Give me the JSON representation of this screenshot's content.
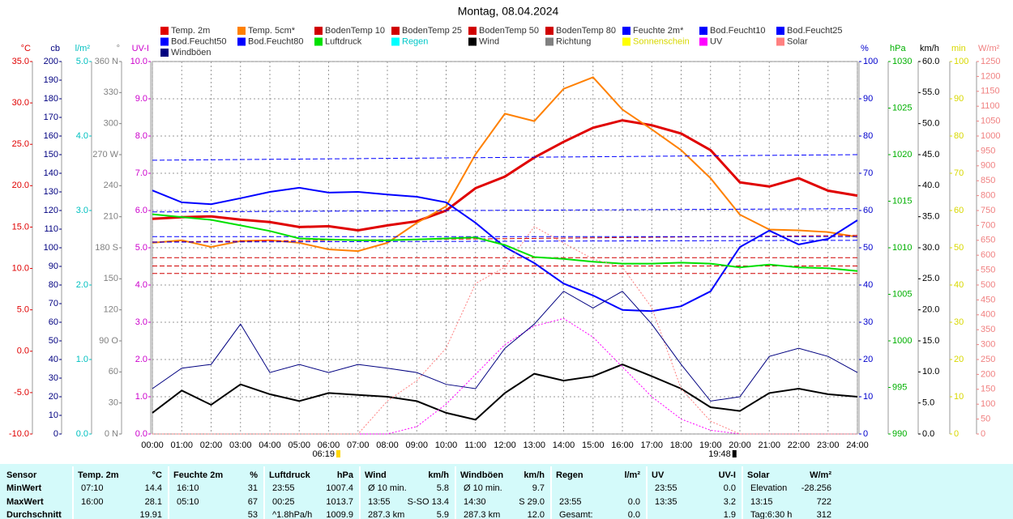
{
  "chart_data": {
    "type": "line",
    "title": "Montag, 08.04.2024",
    "sunrise": "06:19",
    "sunset": "19:48",
    "grid": true,
    "xlim": [
      0,
      24
    ],
    "xticks": [
      {
        "value": 0,
        "label": "00:00"
      },
      {
        "value": 1,
        "label": "01:00"
      },
      {
        "value": 2,
        "label": "02:00"
      },
      {
        "value": 3,
        "label": "03:00"
      },
      {
        "value": 4,
        "label": "04:00"
      },
      {
        "value": 5,
        "label": "05:00"
      },
      {
        "value": 6,
        "label": "06:00"
      },
      {
        "value": 7,
        "label": "07:00"
      },
      {
        "value": 8,
        "label": "08:00"
      },
      {
        "value": 9,
        "label": "09:00"
      },
      {
        "value": 10,
        "label": "10:00"
      },
      {
        "value": 11,
        "label": "11:00"
      },
      {
        "value": 12,
        "label": "12:00"
      },
      {
        "value": 13,
        "label": "13:00"
      },
      {
        "value": 14,
        "label": "14:00"
      },
      {
        "value": 15,
        "label": "15:00"
      },
      {
        "value": 16,
        "label": "16:00"
      },
      {
        "value": 17,
        "label": "17:00"
      },
      {
        "value": 18,
        "label": "18:00"
      },
      {
        "value": 19,
        "label": "19:00"
      },
      {
        "value": 20,
        "label": "20:00"
      },
      {
        "value": 21,
        "label": "21:00"
      },
      {
        "value": 22,
        "label": "22:00"
      },
      {
        "value": 23,
        "label": "23:00"
      },
      {
        "value": 24,
        "label": "24:00"
      }
    ],
    "x": [
      0,
      1,
      2,
      3,
      4,
      5,
      6,
      7,
      8,
      9,
      10,
      11,
      12,
      13,
      14,
      15,
      16,
      17,
      18,
      19,
      20,
      21,
      22,
      23,
      24
    ],
    "axes": [
      {
        "label": "°C",
        "side": "left",
        "color": "#e00000",
        "lim": [
          -10,
          35
        ],
        "ticks": [
          {
            "value": -10,
            "label": "-10.0"
          },
          {
            "value": -5,
            "label": "-5.0"
          },
          {
            "value": 0,
            "label": "0.0"
          },
          {
            "value": 5,
            "label": "5.0"
          },
          {
            "value": 10,
            "label": "10.0"
          },
          {
            "value": 15,
            "label": "15.0"
          },
          {
            "value": 20,
            "label": "20.0"
          },
          {
            "value": 25,
            "label": "25.0"
          },
          {
            "value": 30,
            "label": "30.0"
          },
          {
            "value": 35,
            "label": "35.0"
          }
        ]
      },
      {
        "label": "cb",
        "side": "left",
        "color": "#000080",
        "lim": [
          0,
          200
        ],
        "ticks": [
          0,
          10,
          20,
          30,
          40,
          50,
          60,
          70,
          80,
          90,
          100,
          110,
          120,
          130,
          140,
          150,
          160,
          170,
          180,
          190,
          200
        ]
      },
      {
        "label": "l/m²",
        "side": "left",
        "color": "#00c0c0",
        "lim": [
          0,
          5
        ],
        "ticks": [
          {
            "value": 0,
            "label": "0.0"
          },
          {
            "value": 1,
            "label": "1.0"
          },
          {
            "value": 2,
            "label": "2.0"
          },
          {
            "value": 3,
            "label": "3.0"
          },
          {
            "value": 4,
            "label": "4.0"
          },
          {
            "value": 5,
            "label": "5.0"
          }
        ]
      },
      {
        "label": "°",
        "side": "left",
        "color": "#808080",
        "lim": [
          0,
          360
        ],
        "ticks": [
          {
            "value": 0,
            "label": "0 N"
          },
          30,
          60,
          {
            "value": 90,
            "label": "90 O"
          },
          120,
          150,
          {
            "value": 180,
            "label": "180 S"
          },
          210,
          240,
          {
            "value": 270,
            "label": "270 W"
          },
          300,
          330,
          {
            "value": 360,
            "label": "360 N"
          }
        ]
      },
      {
        "label": "UV-I",
        "side": "left",
        "color": "#cc00cc",
        "lim": [
          0,
          10
        ],
        "ticks": [
          {
            "value": 0,
            "label": "0.0"
          },
          {
            "value": 1,
            "label": "1.0"
          },
          {
            "value": 2,
            "label": "2.0"
          },
          {
            "value": 3,
            "label": "3.0"
          },
          {
            "value": 4,
            "label": "4.0"
          },
          {
            "value": 5,
            "label": "5.0"
          },
          {
            "value": 6,
            "label": "6.0"
          },
          {
            "value": 7,
            "label": "7.0"
          },
          {
            "value": 8,
            "label": "8.0"
          },
          {
            "value": 9,
            "label": "9.0"
          },
          {
            "value": 10,
            "label": "10.0"
          }
        ]
      },
      {
        "label": "%",
        "side": "right",
        "color": "#0000cc",
        "lim": [
          0,
          100
        ],
        "ticks": [
          0,
          10,
          20,
          30,
          40,
          50,
          60,
          70,
          80,
          90,
          100
        ]
      },
      {
        "label": "hPa",
        "side": "right",
        "color": "#00b000",
        "lim": [
          990,
          1030
        ],
        "ticks": [
          990,
          995,
          1000,
          1005,
          1010,
          1015,
          1020,
          1025,
          1030
        ]
      },
      {
        "label": "km/h",
        "side": "right",
        "color": "#000000",
        "lim": [
          0,
          60
        ],
        "ticks": [
          {
            "value": 0,
            "label": "0.0"
          },
          {
            "value": 5,
            "label": "5.0"
          },
          {
            "value": 10,
            "label": "10.0"
          },
          {
            "value": 15,
            "label": "15.0"
          },
          {
            "value": 20,
            "label": "20.0"
          },
          {
            "value": 25,
            "label": "25.0"
          },
          {
            "value": 30,
            "label": "30.0"
          },
          {
            "value": 35,
            "label": "35.0"
          },
          {
            "value": 40,
            "label": "40.0"
          },
          {
            "value": 45,
            "label": "45.0"
          },
          {
            "value": 50,
            "label": "50.0"
          },
          {
            "value": 55,
            "label": "55.0"
          },
          {
            "value": 60,
            "label": "60.0"
          }
        ]
      },
      {
        "label": "min",
        "side": "right",
        "color": "#d8d800",
        "lim": [
          0,
          100
        ],
        "ticks": [
          0,
          10,
          20,
          30,
          40,
          50,
          60,
          70,
          80,
          90,
          100
        ]
      },
      {
        "label": "W/m²",
        "side": "right",
        "color": "#f08080",
        "lim": [
          0,
          1250
        ],
        "ticks": [
          0,
          50,
          100,
          150,
          200,
          250,
          300,
          350,
          400,
          450,
          500,
          550,
          600,
          650,
          700,
          750,
          800,
          850,
          900,
          950,
          1000,
          1050,
          1100,
          1150,
          1200,
          1250
        ]
      }
    ],
    "series": [
      {
        "name": "Temp. 2m",
        "color": "#e00000",
        "axis": "°C",
        "style": "solid",
        "width": 3,
        "values": [
          16.0,
          16.2,
          16.3,
          15.9,
          15.6,
          15.0,
          15.1,
          14.6,
          15.2,
          15.7,
          17.0,
          19.7,
          21.1,
          23.4,
          25.3,
          27.0,
          27.9,
          27.3,
          26.3,
          24.3,
          20.4,
          19.9,
          20.9,
          19.4,
          18.8
        ]
      },
      {
        "name": "Temp. 5cm*",
        "color": "#ff8000",
        "axis": "°C",
        "style": "solid",
        "width": 2,
        "values": [
          13.1,
          13.4,
          12.6,
          13.3,
          13.4,
          13.1,
          12.3,
          12.1,
          13.1,
          15.5,
          17.5,
          23.8,
          28.7,
          27.8,
          31.7,
          33.1,
          29.2,
          26.8,
          24.3,
          20.9,
          16.5,
          14.7,
          14.6,
          14.4,
          13.8
        ]
      },
      {
        "name": "BodenTemp 10",
        "color": "#d00000",
        "axis": "°C",
        "style": "dashed",
        "width": 1,
        "x": [
          0,
          24
        ],
        "values": [
          13.2,
          14.0
        ]
      },
      {
        "name": "BodenTemp 25",
        "color": "#d00000",
        "axis": "°C",
        "style": "dashed",
        "width": 1,
        "x": [
          0,
          24
        ],
        "values": [
          11.3,
          11.3
        ]
      },
      {
        "name": "BodenTemp 50",
        "color": "#d00000",
        "axis": "°C",
        "style": "dashed",
        "width": 1,
        "x": [
          0,
          24
        ],
        "values": [
          10.3,
          10.3
        ]
      },
      {
        "name": "BodenTemp 80",
        "color": "#d00000",
        "axis": "°C",
        "style": "dashed",
        "width": 1,
        "x": [
          0,
          24
        ],
        "values": [
          9.4,
          9.4
        ]
      },
      {
        "name": "Feuchte 2m*",
        "color": "#0000ff",
        "axis": "%",
        "style": "solid",
        "width": 2,
        "values": [
          65.4,
          62.2,
          61.7,
          63.3,
          65.0,
          66.1,
          64.8,
          65.0,
          64.3,
          63.7,
          62.2,
          56.7,
          50.2,
          45.9,
          40.4,
          37.2,
          33.3,
          33.0,
          34.3,
          38.3,
          50.2,
          54.6,
          50.9,
          52.4,
          57.4
        ]
      },
      {
        "name": "Bod.Feucht10",
        "color": "#0000ff",
        "axis": "%",
        "style": "dashed",
        "width": 1,
        "x": [
          0,
          24
        ],
        "values": [
          53,
          53
        ]
      },
      {
        "name": "Bod.Feucht25",
        "color": "#0000ff",
        "axis": "%",
        "style": "dashed",
        "width": 1,
        "x": [
          0,
          24
        ],
        "values": [
          59.6,
          60.5
        ]
      },
      {
        "name": "Bod.Feucht50",
        "color": "#0000ff",
        "axis": "%",
        "style": "dashed",
        "width": 1,
        "x": [
          0,
          24
        ],
        "values": [
          51.5,
          52
        ]
      },
      {
        "name": "Bod.Feucht80",
        "color": "#0000ff",
        "axis": "%",
        "style": "dashed",
        "width": 1,
        "x": [
          0,
          24
        ],
        "values": [
          73.5,
          75
        ]
      },
      {
        "name": "Luftdruck",
        "color": "#00e000",
        "axis": "hPa",
        "style": "solid",
        "width": 2,
        "values": [
          1013.6,
          1013.3,
          1013.0,
          1012.4,
          1011.8,
          1011.0,
          1010.9,
          1010.8,
          1010.8,
          1010.9,
          1011.0,
          1011.1,
          1010.3,
          1009.0,
          1008.8,
          1008.5,
          1008.3,
          1008.3,
          1008.4,
          1008.3,
          1007.9,
          1008.2,
          1007.9,
          1007.8,
          1007.5
        ]
      },
      {
        "name": "Regen",
        "color": "#00ffff",
        "axis": "l/m²"
      },
      {
        "name": "Wind",
        "color": "#000000",
        "axis": "km/h",
        "style": "solid",
        "width": 2,
        "values": [
          3.4,
          7.0,
          4.7,
          8.0,
          6.4,
          5.3,
          6.6,
          6.3,
          6.0,
          5.3,
          3.4,
          2.3,
          6.6,
          9.7,
          8.6,
          9.3,
          11.2,
          9.3,
          7.3,
          4.3,
          3.7,
          6.6,
          7.3,
          6.4,
          6.0
        ]
      },
      {
        "name": "Richtung",
        "color": "#808080",
        "axis": "°"
      },
      {
        "name": "Sonnenschein",
        "color": "#ffff00",
        "axis": "min"
      },
      {
        "name": "UV",
        "color": "#ff00ff",
        "axis": "UV-I",
        "style": "dotted",
        "width": 1,
        "values": [
          0,
          0,
          0,
          0,
          0,
          0,
          0,
          0,
          0,
          0.2,
          0.8,
          1.6,
          2.4,
          2.9,
          3.1,
          2.6,
          1.8,
          1.0,
          0.4,
          0.1,
          0,
          0,
          0,
          0,
          0
        ]
      },
      {
        "name": "Solar",
        "color": "#ff8080",
        "axis": "W/m²",
        "style": "dotted",
        "width": 1,
        "values": [
          0,
          0,
          0,
          0,
          0,
          0,
          0,
          0,
          111,
          179,
          288,
          505,
          560,
          696,
          641,
          587,
          560,
          424,
          152,
          43,
          0,
          0,
          0,
          0,
          0
        ]
      },
      {
        "name": "Windböen",
        "color": "#000080",
        "axis": "km/h",
        "style": "solid",
        "width": 1,
        "values": [
          7.3,
          10.6,
          11.2,
          17.7,
          9.9,
          11.2,
          9.9,
          11.2,
          10.6,
          9.9,
          8.0,
          7.3,
          13.8,
          17.7,
          23.0,
          20.3,
          23.0,
          17.7,
          11.2,
          5.3,
          6.0,
          12.5,
          13.8,
          12.5,
          9.9
        ]
      }
    ]
  },
  "table": {
    "sensor_label": "Sensor",
    "columns": [
      {
        "name": "Temp. 2m",
        "unit": "°C"
      },
      {
        "name": "Feuchte 2m",
        "unit": "%"
      },
      {
        "name": "Luftdruck",
        "unit": "hPa"
      },
      {
        "name": "Wind",
        "unit": "km/h"
      },
      {
        "name": "Windböen",
        "unit": "km/h"
      },
      {
        "name": "Regen",
        "unit": "l/m²"
      },
      {
        "name": "UV",
        "unit": "UV-I"
      },
      {
        "name": "Solar",
        "unit": "W/m²"
      }
    ],
    "rows": [
      {
        "label": "MinWert",
        "cells": [
          {
            "l": "07:10",
            "r": "14.4"
          },
          {
            "l": "16:10",
            "r": "31"
          },
          {
            "l": "23:55",
            "r": "1007.4"
          },
          {
            "l": "Ø 10 min.",
            "r": "5.8"
          },
          {
            "l": "Ø 10 min.",
            "r": "9.7"
          },
          {},
          {
            "l": "23:55",
            "r": "0.0"
          },
          {
            "l": "Elevation",
            "r": "-28.256"
          }
        ]
      },
      {
        "label": "MaxWert",
        "cells": [
          {
            "l": "16:00",
            "r": "28.1"
          },
          {
            "l": "05:10",
            "r": "67"
          },
          {
            "l": "00:25",
            "r": "1013.7"
          },
          {
            "l": "13:55",
            "r": "S-SO 13.4"
          },
          {
            "l": "14:30",
            "r": "S 29.0"
          },
          {
            "l": "23:55",
            "r": "0.0"
          },
          {
            "l": "13:35",
            "r": "3.2"
          },
          {
            "l": "13:15",
            "r": "722"
          }
        ]
      },
      {
        "label": "Durchschnitt",
        "cells": [
          {
            "r": "19.91"
          },
          {
            "r": "53"
          },
          {
            "l": "^1.8hPa/h",
            "r": "1009.9"
          },
          {
            "l": "287.3 km",
            "r": "5.9"
          },
          {
            "l": "287.3 km",
            "r": "12.0"
          },
          {
            "l": "Gesamt:",
            "r": "0.0"
          },
          {
            "r": "1.9"
          },
          {
            "l": "Tag:6:30 h",
            "r": "312"
          }
        ]
      }
    ]
  }
}
